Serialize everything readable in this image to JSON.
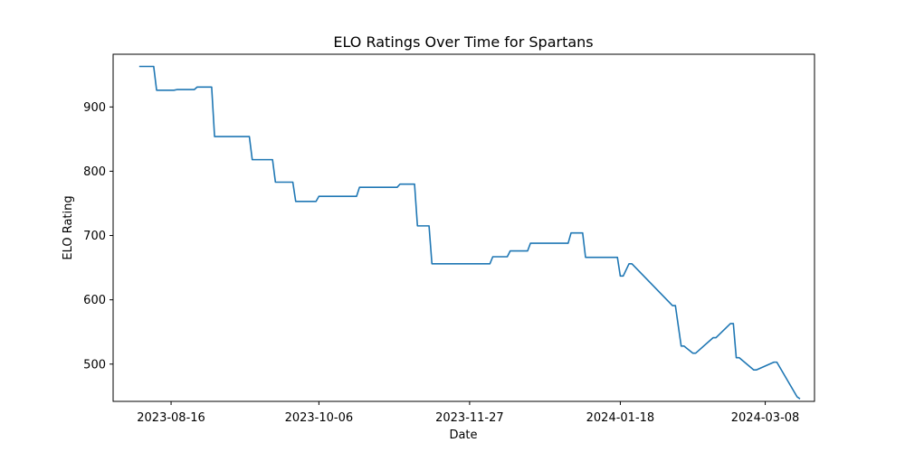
{
  "chart_data": {
    "type": "line",
    "title": "ELO Ratings Over Time for Spartans",
    "xlabel": "Date",
    "ylabel": "ELO Rating",
    "x_ticks": [
      "2023-08-16",
      "2023-10-06",
      "2023-11-27",
      "2024-01-18",
      "2024-03-08"
    ],
    "y_ticks": [
      500,
      600,
      700,
      800,
      900
    ],
    "xlim": [
      "2023-07-27",
      "2024-03-25"
    ],
    "ylim": [
      442,
      982
    ],
    "grid": false,
    "legend": "none",
    "line_color": "#1f77b4",
    "series": [
      {
        "x": [
          "2023-08-05",
          "2023-08-10",
          "2023-08-11",
          "2023-08-17",
          "2023-08-18",
          "2023-08-24",
          "2023-08-25",
          "2023-08-30",
          "2023-08-31",
          "2023-09-12",
          "2023-09-13",
          "2023-09-20",
          "2023-09-21",
          "2023-09-27",
          "2023-09-28",
          "2023-10-05",
          "2023-10-06",
          "2023-10-19",
          "2023-10-20",
          "2023-11-02",
          "2023-11-03",
          "2023-11-08",
          "2023-11-09",
          "2023-11-13",
          "2023-11-14",
          "2023-12-04",
          "2023-12-05",
          "2023-12-10",
          "2023-12-11",
          "2023-12-17",
          "2023-12-18",
          "2023-12-31",
          "2024-01-01",
          "2024-01-05",
          "2024-01-06",
          "2024-01-16",
          "2024-01-17",
          "2024-01-18",
          "2024-01-19",
          "2024-01-21",
          "2024-01-22",
          "2024-02-05",
          "2024-02-06",
          "2024-02-08",
          "2024-02-09",
          "2024-02-12",
          "2024-02-13",
          "2024-02-19",
          "2024-02-20",
          "2024-02-25",
          "2024-02-26",
          "2024-02-27",
          "2024-02-28",
          "2024-03-04",
          "2024-03-05",
          "2024-03-11",
          "2024-03-12",
          "2024-03-19",
          "2024-03-20"
        ],
        "y": [
          963,
          963,
          926,
          926,
          927,
          927,
          931,
          931,
          854,
          854,
          818,
          818,
          783,
          783,
          753,
          753,
          761,
          761,
          775,
          775,
          780,
          780,
          715,
          715,
          656,
          656,
          667,
          667,
          676,
          676,
          688,
          688,
          704,
          704,
          666,
          666,
          666,
          637,
          637,
          656,
          656,
          591,
          591,
          528,
          528,
          517,
          517,
          541,
          541,
          563,
          563,
          510,
          510,
          491,
          491,
          503,
          503,
          449,
          446
        ]
      }
    ]
  }
}
